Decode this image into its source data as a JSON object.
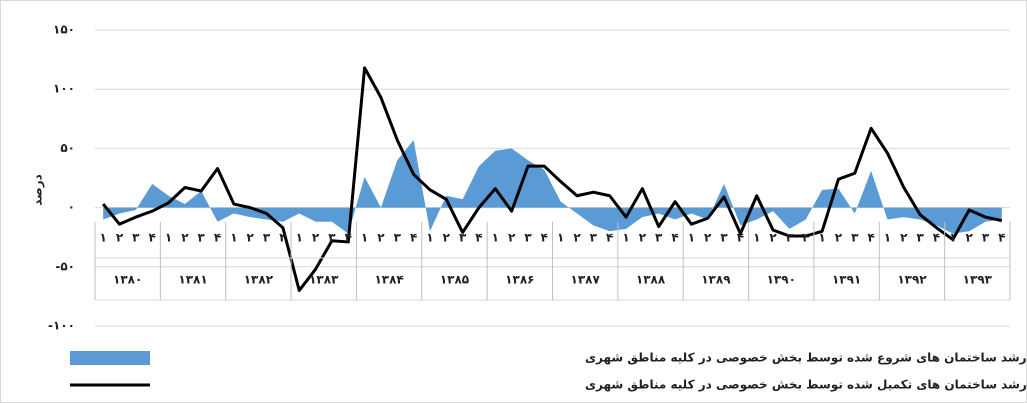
{
  "chart_data": {
    "type": "area",
    "y_label": "درصد",
    "categories": [
      "۱",
      "۲",
      "۳",
      "۴",
      "۱",
      "۲",
      "۳",
      "۴",
      "۱",
      "۲",
      "۳",
      "۴",
      "۱",
      "۲",
      "۳",
      "۴",
      "۱",
      "۲",
      "۳",
      "۴",
      "۱",
      "۲",
      "۳",
      "۴",
      "۱",
      "۲",
      "۳",
      "۴",
      "۱",
      "۲",
      "۳",
      "۴",
      "۱",
      "۲",
      "۳",
      "۴",
      "۱",
      "۲",
      "۳",
      "۴",
      "۱",
      "۲",
      "۳",
      "۴",
      "۱",
      "۲",
      "۳",
      "۴",
      "۱",
      "۲",
      "۳",
      "۴",
      "۱",
      "۲",
      "۳",
      "۴"
    ],
    "groups": [
      "۱۳۸۰",
      "۱۳۸۱",
      "۱۳۸۲",
      "۱۳۸۳",
      "۱۳۸۴",
      "۱۳۸۵",
      "۱۳۸۶",
      "۱۳۸۷",
      "۱۳۸۸",
      "۱۳۸۹",
      "۱۳۹۰",
      "۱۳۹۱",
      "۱۳۹۲",
      "۱۳۹۳"
    ],
    "ylim": [
      -100,
      150
    ],
    "yticks": [
      {
        "value": -100,
        "label": "-۱۰۰"
      },
      {
        "value": -50,
        "label": "-۵۰"
      },
      {
        "value": 0,
        "label": "۰"
      },
      {
        "value": 50,
        "label": "۵۰"
      },
      {
        "value": 100,
        "label": "۱۰۰"
      },
      {
        "value": 150,
        "label": "۱۵۰"
      }
    ],
    "grid": true,
    "series": [
      {
        "name": "رشد ساختمان های شروع شده توسط بخش خصوصی در  کلیه مناطق شهری",
        "color": "#5b9bd5",
        "type": "area",
        "values": [
          -10,
          -5,
          -2,
          20,
          10,
          3,
          14,
          -12,
          -5,
          -8,
          -10,
          -12,
          -5,
          -12,
          -12,
          -22,
          26,
          0,
          40,
          57,
          -20,
          10,
          7,
          35,
          48,
          50,
          40,
          32,
          5,
          -5,
          -15,
          -20,
          -18,
          -8,
          -5,
          -10,
          -5,
          -10,
          20,
          -15,
          -10,
          -3,
          -18,
          -10,
          15,
          16,
          -5,
          31,
          -10,
          -8,
          -10,
          -15,
          -22,
          -20,
          -12,
          -10
        ]
      },
      {
        "name": "رشد ساختمان های تکمیل شده توسط بخش خصوصی در  کلیه مناطق شهری",
        "color": "#000000",
        "type": "line",
        "values": [
          3,
          -14,
          -8,
          -3,
          4,
          17,
          14,
          33,
          3,
          0,
          -5,
          -17,
          -70,
          -52,
          -28,
          -29,
          118,
          93,
          57,
          28,
          15,
          7,
          -21,
          0,
          16,
          -3,
          35,
          35,
          22,
          10,
          13,
          10,
          -8,
          16,
          -16,
          5,
          -14,
          -9,
          9,
          -22,
          10,
          -19,
          -24,
          -24,
          -20,
          24,
          29,
          67,
          46,
          17,
          -6,
          -17,
          -27,
          -2,
          -8,
          -11
        ]
      }
    ]
  }
}
